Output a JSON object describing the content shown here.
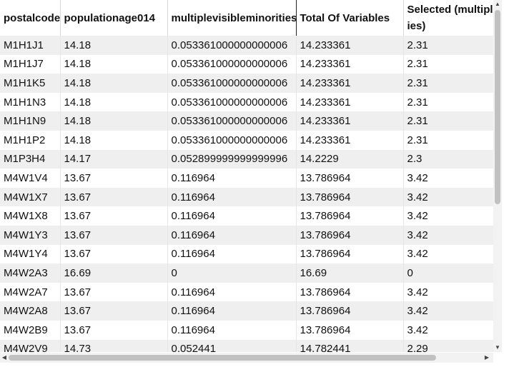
{
  "table": {
    "columns": [
      "postalcode",
      "populationage014",
      "multiplevisibleminorities",
      "Total Of Variables",
      "Selected (multiplevisibleminorities)"
    ],
    "rows": [
      [
        "M1H1J1",
        "14.18",
        "0.053361000000000006",
        "14.233361",
        "2.31"
      ],
      [
        "M1H1J7",
        "14.18",
        "0.053361000000000006",
        "14.233361",
        "2.31"
      ],
      [
        "M1H1K5",
        "14.18",
        "0.053361000000000006",
        "14.233361",
        "2.31"
      ],
      [
        "M1H1N3",
        "14.18",
        "0.053361000000000006",
        "14.233361",
        "2.31"
      ],
      [
        "M1H1N9",
        "14.18",
        "0.053361000000000006",
        "14.233361",
        "2.31"
      ],
      [
        "M1H1P2",
        "14.18",
        "0.053361000000000006",
        "14.233361",
        "2.31"
      ],
      [
        "M1P3H4",
        "14.17",
        "0.052899999999999996",
        "14.2229",
        "2.3"
      ],
      [
        "M4W1V4",
        "13.67",
        "0.116964",
        "13.786964",
        "3.42"
      ],
      [
        "M4W1X7",
        "13.67",
        "0.116964",
        "13.786964",
        "3.42"
      ],
      [
        "M4W1X8",
        "13.67",
        "0.116964",
        "13.786964",
        "3.42"
      ],
      [
        "M4W1Y3",
        "13.67",
        "0.116964",
        "13.786964",
        "3.42"
      ],
      [
        "M4W1Y4",
        "13.67",
        "0.116964",
        "13.786964",
        "3.42"
      ],
      [
        "M4W2A3",
        "16.69",
        "0",
        "16.69",
        "0"
      ],
      [
        "M4W2A7",
        "13.67",
        "0.116964",
        "13.786964",
        "3.42"
      ],
      [
        "M4W2A8",
        "13.67",
        "0.116964",
        "13.786964",
        "3.42"
      ],
      [
        "M4W2B9",
        "13.67",
        "0.116964",
        "13.786964",
        "3.42"
      ],
      [
        "M4W2V9",
        "14.73",
        "0.052441",
        "14.782441",
        "2.29"
      ]
    ]
  },
  "scrollbars": {
    "vertical": {
      "up_arrow": "▲",
      "down_arrow": "▼"
    },
    "horizontal": {
      "left_arrow": "◀",
      "right_arrow": "▶"
    }
  }
}
